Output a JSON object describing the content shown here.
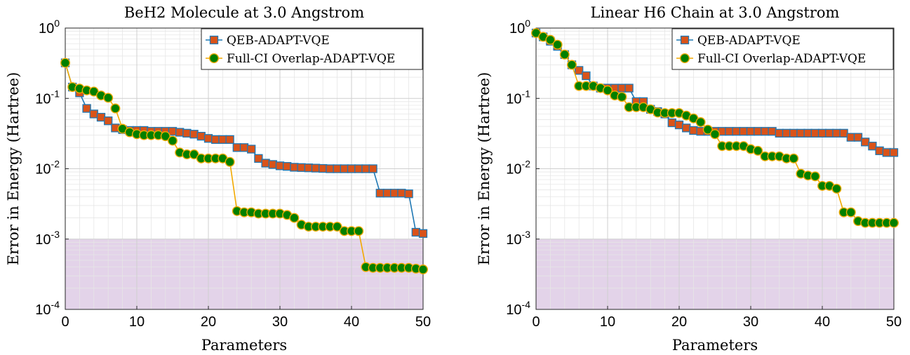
{
  "chart_data": [
    {
      "type": "line",
      "title": "BeH2 Molecule at 3.0 Angstrom",
      "xlabel": "Parameters",
      "ylabel": "Error in Energy (Hartree)",
      "xlim": [
        0,
        50
      ],
      "ylim": [
        0.0001,
        1
      ],
      "yscale": "log",
      "grid": true,
      "legend": "top-right",
      "x_ticks": [
        "0",
        "10",
        "20",
        "30",
        "40",
        "50"
      ],
      "y_ticks": [
        {
          "base": "10",
          "exp": "0",
          "value": 1
        },
        {
          "base": "10",
          "exp": "-1",
          "value": 0.1
        },
        {
          "base": "10",
          "exp": "-2",
          "value": 0.01
        },
        {
          "base": "10",
          "exp": "-3",
          "value": 0.001
        },
        {
          "base": "10",
          "exp": "-4",
          "value": 0.0001
        }
      ],
      "threshold_band": {
        "from": 0.0001,
        "to": 0.001,
        "color": "#dcc8e4"
      },
      "series": [
        {
          "name": "QEB-ADAPT-VQE",
          "line_color": "#1f78b4",
          "marker": "square",
          "marker_fill": "#d95319",
          "x": [
            0,
            1,
            2,
            3,
            4,
            5,
            6,
            7,
            8,
            9,
            10,
            11,
            12,
            13,
            14,
            15,
            16,
            17,
            18,
            19,
            20,
            21,
            22,
            23,
            24,
            25,
            26,
            27,
            28,
            29,
            30,
            31,
            32,
            33,
            34,
            35,
            36,
            37,
            38,
            39,
            40,
            41,
            42,
            43,
            44,
            45,
            46,
            47,
            48,
            49,
            50
          ],
          "y": [
            0.32,
            0.145,
            0.12,
            0.072,
            0.06,
            0.054,
            0.048,
            0.038,
            0.036,
            0.035,
            0.035,
            0.035,
            0.034,
            0.034,
            0.034,
            0.034,
            0.033,
            0.032,
            0.031,
            0.029,
            0.027,
            0.026,
            0.026,
            0.026,
            0.02,
            0.02,
            0.019,
            0.014,
            0.012,
            0.0115,
            0.011,
            0.0108,
            0.0105,
            0.0104,
            0.0103,
            0.0102,
            0.0101,
            0.01,
            0.01,
            0.01,
            0.01,
            0.01,
            0.01,
            0.01,
            0.0045,
            0.0045,
            0.0045,
            0.0045,
            0.0044,
            0.00125,
            0.0012
          ]
        },
        {
          "name": "Full-CI Overlap-ADAPT-VQE",
          "line_color": "#f2a900",
          "marker": "circle",
          "marker_fill": "#008000",
          "x": [
            0,
            1,
            2,
            3,
            4,
            5,
            6,
            7,
            8,
            9,
            10,
            11,
            12,
            13,
            14,
            15,
            16,
            17,
            18,
            19,
            20,
            21,
            22,
            23,
            24,
            25,
            26,
            27,
            28,
            29,
            30,
            31,
            32,
            33,
            34,
            35,
            36,
            37,
            38,
            39,
            40,
            41,
            42,
            43,
            44,
            45,
            46,
            47,
            48,
            49,
            50
          ],
          "y": [
            0.32,
            0.145,
            0.138,
            0.13,
            0.125,
            0.11,
            0.102,
            0.072,
            0.037,
            0.033,
            0.031,
            0.03,
            0.03,
            0.03,
            0.029,
            0.025,
            0.017,
            0.016,
            0.016,
            0.014,
            0.014,
            0.014,
            0.014,
            0.0125,
            0.0025,
            0.0024,
            0.0024,
            0.0023,
            0.0023,
            0.0023,
            0.0023,
            0.0022,
            0.002,
            0.0016,
            0.0015,
            0.0015,
            0.0015,
            0.0015,
            0.0015,
            0.0013,
            0.0013,
            0.0013,
            0.0004,
            0.00039,
            0.00039,
            0.00039,
            0.00039,
            0.00039,
            0.00039,
            0.00038,
            0.00037
          ]
        }
      ]
    },
    {
      "type": "line",
      "title": "Linear H6 Chain at 3.0 Angstrom",
      "xlabel": "Parameters",
      "ylabel": "Error in Energy (Hartree)",
      "xlim": [
        0,
        50
      ],
      "ylim": [
        0.0001,
        1
      ],
      "yscale": "log",
      "grid": true,
      "legend": "top-right",
      "x_ticks": [
        "0",
        "10",
        "20",
        "30",
        "40",
        "50"
      ],
      "y_ticks": [
        {
          "base": "10",
          "exp": "0",
          "value": 1
        },
        {
          "base": "10",
          "exp": "-1",
          "value": 0.1
        },
        {
          "base": "10",
          "exp": "-2",
          "value": 0.01
        },
        {
          "base": "10",
          "exp": "-3",
          "value": 0.001
        },
        {
          "base": "10",
          "exp": "-4",
          "value": 0.0001
        }
      ],
      "threshold_band": {
        "from": 0.0001,
        "to": 0.001,
        "color": "#dcc8e4"
      },
      "series": [
        {
          "name": "QEB-ADAPT-VQE",
          "line_color": "#1f78b4",
          "marker": "square",
          "marker_fill": "#d95319",
          "x": [
            0,
            1,
            2,
            3,
            4,
            5,
            6,
            7,
            8,
            9,
            10,
            11,
            12,
            13,
            14,
            15,
            16,
            17,
            18,
            19,
            20,
            21,
            22,
            23,
            24,
            25,
            26,
            27,
            28,
            29,
            30,
            31,
            32,
            33,
            34,
            35,
            36,
            37,
            38,
            39,
            40,
            41,
            42,
            43,
            44,
            45,
            46,
            47,
            48,
            49,
            50
          ],
          "y": [
            0.85,
            0.75,
            0.65,
            0.55,
            0.42,
            0.3,
            0.25,
            0.21,
            0.15,
            0.14,
            0.14,
            0.14,
            0.14,
            0.14,
            0.09,
            0.09,
            0.07,
            0.065,
            0.06,
            0.045,
            0.042,
            0.038,
            0.035,
            0.034,
            0.034,
            0.034,
            0.034,
            0.034,
            0.034,
            0.034,
            0.034,
            0.034,
            0.034,
            0.034,
            0.032,
            0.032,
            0.032,
            0.032,
            0.032,
            0.032,
            0.032,
            0.032,
            0.032,
            0.032,
            0.028,
            0.028,
            0.024,
            0.021,
            0.018,
            0.017,
            0.017
          ]
        },
        {
          "name": "Full-CI Overlap-ADAPT-VQE",
          "line_color": "#f2a900",
          "marker": "circle",
          "marker_fill": "#008000",
          "x": [
            0,
            1,
            2,
            3,
            4,
            5,
            6,
            7,
            8,
            9,
            10,
            11,
            12,
            13,
            14,
            15,
            16,
            17,
            18,
            19,
            20,
            21,
            22,
            23,
            24,
            25,
            26,
            27,
            28,
            29,
            30,
            31,
            32,
            33,
            34,
            35,
            36,
            37,
            38,
            39,
            40,
            41,
            42,
            43,
            44,
            45,
            46,
            47,
            48,
            49,
            50
          ],
          "y": [
            0.85,
            0.75,
            0.68,
            0.58,
            0.42,
            0.3,
            0.15,
            0.15,
            0.15,
            0.14,
            0.13,
            0.11,
            0.105,
            0.075,
            0.075,
            0.075,
            0.07,
            0.063,
            0.062,
            0.062,
            0.062,
            0.057,
            0.052,
            0.046,
            0.036,
            0.031,
            0.021,
            0.021,
            0.021,
            0.021,
            0.019,
            0.018,
            0.015,
            0.015,
            0.015,
            0.014,
            0.014,
            0.0085,
            0.008,
            0.0078,
            0.0057,
            0.0057,
            0.0052,
            0.0024,
            0.0024,
            0.0018,
            0.0017,
            0.0017,
            0.0017,
            0.0017,
            0.0017
          ]
        }
      ]
    }
  ]
}
